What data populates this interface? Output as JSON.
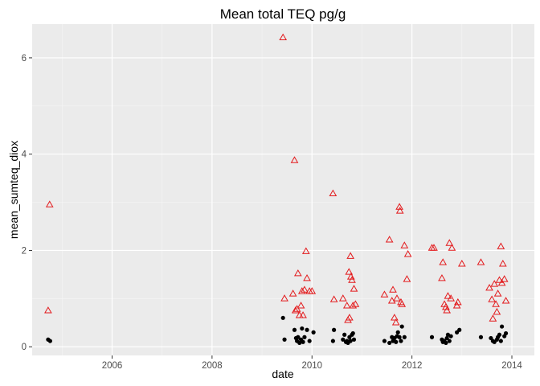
{
  "chart_data": {
    "type": "scatter",
    "title": "Mean total TEQ pg/g",
    "xlabel": "date",
    "ylabel": "mean_sumteq_diox",
    "xlim": [
      2004.4,
      2014.45
    ],
    "ylim": [
      -0.18,
      6.7
    ],
    "x_ticks": [
      2006,
      2008,
      2010,
      2012,
      2014
    ],
    "x_tick_labels": [
      "2006",
      "2008",
      "2010",
      "2012",
      "2014"
    ],
    "y_ticks": [
      0,
      2,
      4,
      6
    ],
    "y_tick_labels": [
      "0",
      "2",
      "4",
      "6"
    ],
    "grid": true,
    "background": "#ebebeb",
    "series": [
      {
        "marker": "triangle-open",
        "color": "#e31a1c",
        "x": [
          2004.72,
          2004.75,
          2009.42,
          2009.45,
          2009.65,
          2009.62,
          2009.67,
          2009.7,
          2009.72,
          2009.75,
          2009.78,
          2009.8,
          2009.82,
          2009.85,
          2009.88,
          2009.9,
          2009.95,
          2010.0,
          2010.42,
          2010.44,
          2010.62,
          2010.7,
          2010.72,
          2010.74,
          2010.75,
          2010.77,
          2010.78,
          2010.8,
          2010.82,
          2010.84,
          2010.87,
          2011.45,
          2011.55,
          2011.6,
          2011.62,
          2011.65,
          2011.68,
          2011.7,
          2011.75,
          2011.76,
          2011.78,
          2011.8,
          2011.85,
          2011.9,
          2011.92,
          2012.4,
          2012.44,
          2012.6,
          2012.62,
          2012.65,
          2012.68,
          2012.7,
          2012.72,
          2012.75,
          2012.78,
          2012.8,
          2012.9,
          2012.92,
          2013.0,
          2013.38,
          2013.55,
          2013.6,
          2013.62,
          2013.65,
          2013.68,
          2013.7,
          2013.72,
          2013.75,
          2013.78,
          2013.8,
          2013.82,
          2013.85,
          2013.88
        ],
        "y": [
          0.75,
          2.95,
          6.42,
          1.0,
          3.87,
          1.1,
          0.75,
          0.78,
          1.52,
          0.65,
          0.85,
          1.15,
          0.65,
          1.18,
          1.98,
          1.42,
          1.15,
          1.15,
          3.18,
          0.98,
          1.0,
          0.85,
          0.55,
          1.55,
          0.6,
          1.88,
          1.45,
          1.38,
          0.85,
          1.2,
          0.88,
          1.08,
          2.22,
          0.95,
          1.18,
          0.6,
          0.5,
          1.0,
          2.9,
          2.82,
          0.92,
          0.88,
          2.1,
          1.4,
          1.92,
          2.05,
          2.05,
          1.42,
          1.75,
          0.88,
          0.82,
          0.75,
          1.05,
          2.15,
          1.0,
          2.05,
          0.85,
          0.92,
          1.72,
          1.75,
          1.22,
          0.98,
          0.58,
          1.3,
          0.88,
          0.72,
          1.1,
          1.38,
          2.08,
          1.32,
          1.72,
          1.4,
          0.95
        ]
      },
      {
        "marker": "circle-filled",
        "color": "#000000",
        "x": [
          2004.72,
          2004.76,
          2009.42,
          2009.45,
          2009.65,
          2009.68,
          2009.7,
          2009.72,
          2009.75,
          2009.78,
          2009.8,
          2009.82,
          2009.85,
          2009.9,
          2009.95,
          2010.03,
          2010.42,
          2010.44,
          2010.62,
          2010.65,
          2010.68,
          2010.7,
          2010.72,
          2010.75,
          2010.77,
          2010.8,
          2010.82,
          2010.84,
          2011.45,
          2011.55,
          2011.6,
          2011.62,
          2011.65,
          2011.68,
          2011.7,
          2011.72,
          2011.75,
          2011.78,
          2011.8,
          2011.85,
          2012.4,
          2012.6,
          2012.62,
          2012.65,
          2012.68,
          2012.7,
          2012.72,
          2012.75,
          2012.78,
          2012.9,
          2012.95,
          2013.38,
          2013.58,
          2013.62,
          2013.65,
          2013.7,
          2013.72,
          2013.75,
          2013.78,
          2013.8,
          2013.85,
          2013.88
        ],
        "y": [
          0.15,
          0.12,
          0.6,
          0.15,
          0.35,
          0.18,
          0.12,
          0.2,
          0.08,
          0.15,
          0.38,
          0.1,
          0.2,
          0.35,
          0.12,
          0.3,
          0.12,
          0.35,
          0.15,
          0.25,
          0.1,
          0.12,
          0.08,
          0.2,
          0.12,
          0.25,
          0.28,
          0.15,
          0.12,
          0.08,
          0.2,
          0.12,
          0.18,
          0.1,
          0.22,
          0.3,
          0.2,
          0.12,
          0.42,
          0.2,
          0.2,
          0.15,
          0.1,
          0.12,
          0.08,
          0.18,
          0.25,
          0.12,
          0.22,
          0.3,
          0.35,
          0.2,
          0.18,
          0.12,
          0.1,
          0.15,
          0.2,
          0.25,
          0.12,
          0.42,
          0.22,
          0.28
        ]
      }
    ]
  }
}
